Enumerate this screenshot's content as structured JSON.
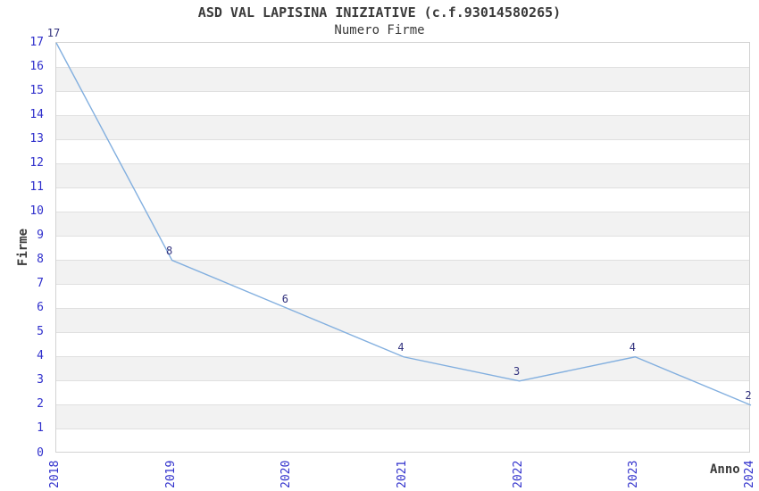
{
  "title": "ASD VAL LAPISINA INIZIATIVE (c.f.93014580265)",
  "subtitle": "Numero Firme",
  "chart_data": {
    "type": "line",
    "x": [
      "2018",
      "2019",
      "2020",
      "2021",
      "2022",
      "2023",
      "2024"
    ],
    "values": [
      17,
      8,
      6,
      4,
      3,
      4,
      2
    ],
    "series_name": "Numero Firme",
    "title": "ASD VAL LAPISINA INIZIATIVE (c.f.93014580265)",
    "xlabel": "Anno",
    "ylabel": "Firme",
    "ylim": [
      0,
      17
    ],
    "ytick_step": 1,
    "yticks": [
      0,
      1,
      2,
      3,
      4,
      5,
      6,
      7,
      8,
      9,
      10,
      11,
      12,
      13,
      14,
      15,
      16,
      17
    ],
    "grid": "alternating horizontal bands, gridline every 1 unit",
    "legend_position": "none",
    "markers": false,
    "data_labels_shown": true,
    "colors": {
      "line": "#82afdf",
      "tick_label": "#3030cc",
      "data_label": "#32327e",
      "band": "#f2f2f2",
      "gridline": "#e0e0e0",
      "plot_border": "#d2d2d2",
      "text": "#3a3a3a",
      "background": "#ffffff"
    }
  }
}
